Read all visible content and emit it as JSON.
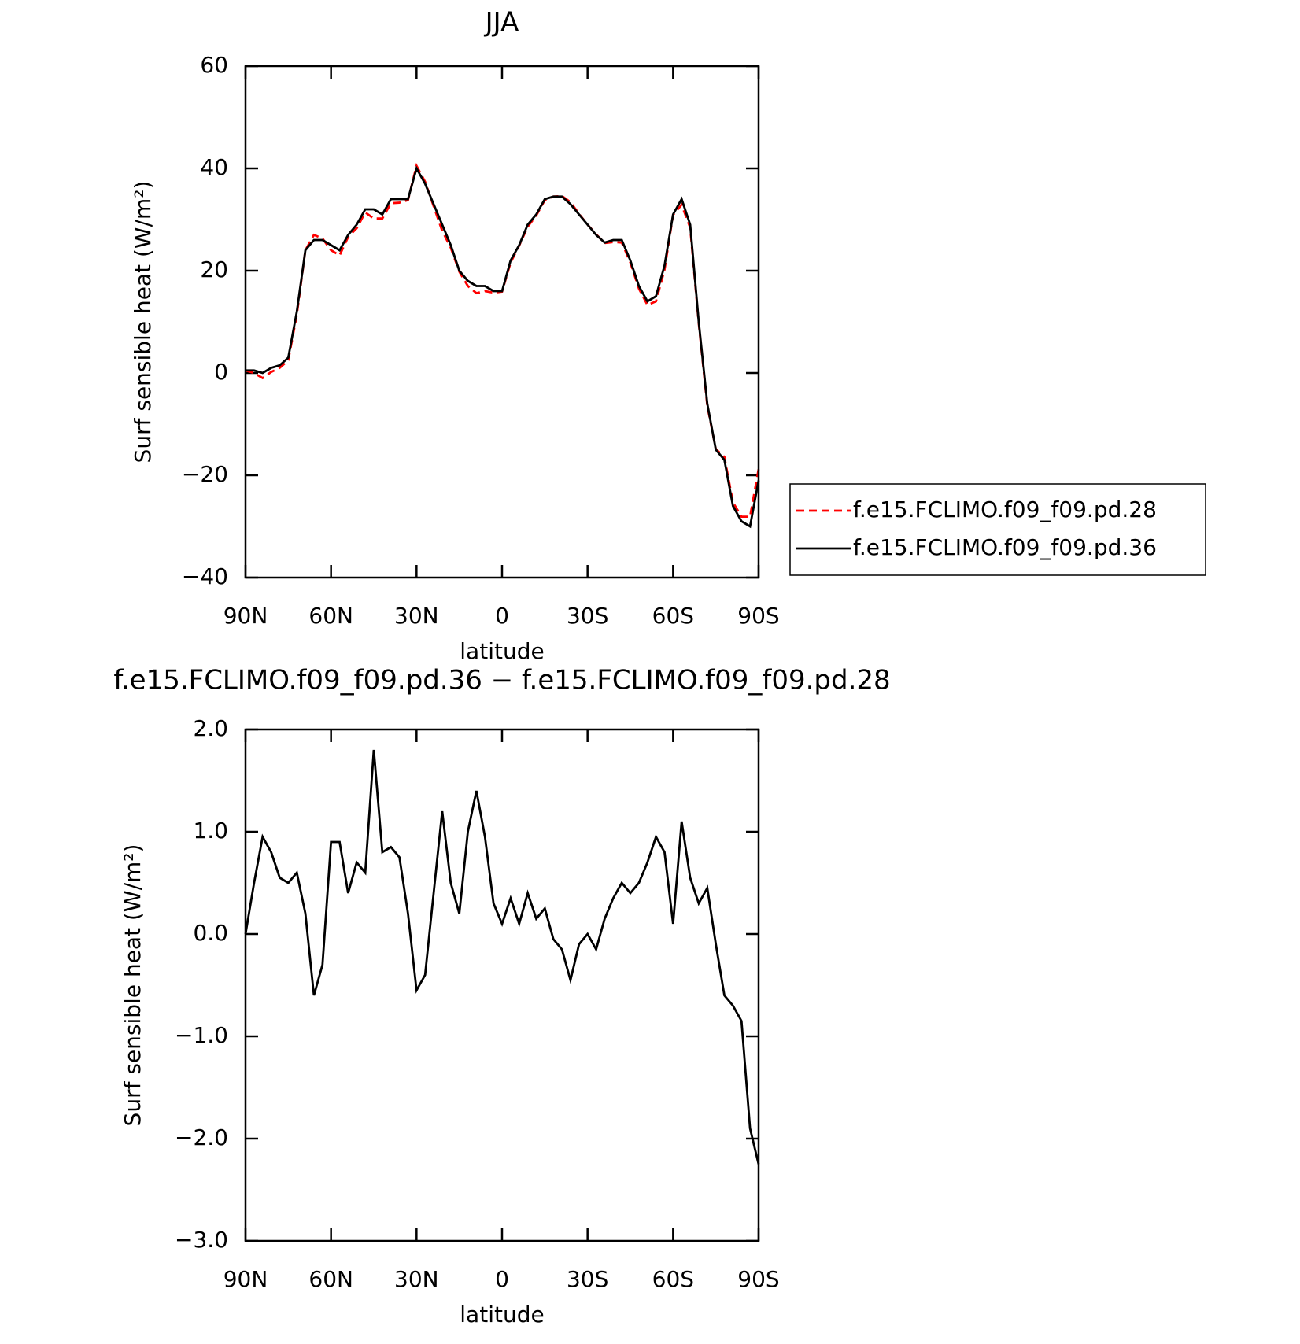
{
  "chart_data": [
    {
      "type": "line",
      "title": "JJA",
      "xlabel": "latitude",
      "ylabel": "Surf sensible heat (W/m²)",
      "x": [
        90,
        87,
        84,
        81,
        78,
        75,
        72,
        69,
        66,
        63,
        60,
        57,
        54,
        51,
        48,
        45,
        42,
        39,
        36,
        33,
        30,
        27,
        24,
        21,
        18,
        15,
        12,
        9,
        6,
        3,
        0,
        -3,
        -6,
        -9,
        -12,
        -15,
        -18,
        -21,
        -24,
        -27,
        -30,
        -33,
        -36,
        -39,
        -42,
        -45,
        -48,
        -51,
        -54,
        -57,
        -60,
        -63,
        -66,
        -69,
        -72,
        -75,
        -78,
        -81,
        -84,
        -87,
        -90
      ],
      "xlim": [
        90,
        -90
      ],
      "xticks": [
        {
          "value": 90,
          "label": "90N"
        },
        {
          "value": 60,
          "label": "60N"
        },
        {
          "value": 30,
          "label": "30N"
        },
        0,
        {
          "value": -30,
          "label": "30S"
        },
        {
          "value": -60,
          "label": "60S"
        },
        {
          "value": -90,
          "label": "90S"
        }
      ],
      "ylim": [
        -40,
        60
      ],
      "yticks": [
        {
          "value": -40,
          "label": "−40"
        },
        {
          "value": -20,
          "label": "−20"
        },
        0,
        20,
        40,
        60
      ],
      "legend": "right",
      "series": [
        {
          "name": "f.e15.FCLIMO.f09_f09.pd.28",
          "color": "#ff0000",
          "dash": true,
          "values": [
            0.5,
            0,
            -1,
            0.2,
            1,
            2.5,
            11.4,
            24,
            27,
            26.3,
            24,
            23,
            26.6,
            28.3,
            31.4,
            30.2,
            30.2,
            33.2,
            33.3,
            33.8,
            40.5,
            37.4,
            32.6,
            27.8,
            24.5,
            19.8,
            17,
            15.6,
            16,
            15.7,
            15.9,
            21.6,
            24.9,
            28.6,
            30.8,
            33.8,
            34.5,
            34.6,
            33.4,
            31.1,
            29,
            27.1,
            25.4,
            25.6,
            25.5,
            21.6,
            16.5,
            13.3,
            14,
            20.2,
            30.9,
            32.9,
            28.4,
            9.7,
            -6.4,
            -14.9,
            -16.4,
            -25.3,
            -28.1,
            -28.1,
            -18.8
          ]
        },
        {
          "name": "f.e15.FCLIMO.f09_f09.pd.36",
          "color": "#000000",
          "dash": false,
          "values": [
            0.5,
            0.5,
            0,
            1,
            1.5,
            3,
            12,
            24,
            26,
            26,
            25,
            24,
            27,
            29,
            32,
            32,
            31,
            34,
            34,
            34,
            40,
            37,
            33,
            29,
            25,
            20,
            18,
            17,
            17,
            16,
            16,
            22,
            25,
            29,
            31,
            34,
            34.5,
            34.5,
            33,
            31,
            29,
            27,
            25.5,
            26,
            26,
            22,
            17,
            14,
            15,
            21,
            31,
            34,
            29,
            10,
            -6,
            -15,
            -17,
            -26,
            -29,
            -30,
            -21
          ]
        }
      ]
    },
    {
      "type": "line",
      "title": "f.e15.FCLIMO.f09_f09.pd.36 − f.e15.FCLIMO.f09_f09.pd.28",
      "xlabel": "latitude",
      "ylabel": "Surf sensible heat (W/m²)",
      "x": [
        90,
        87,
        84,
        81,
        78,
        75,
        72,
        69,
        66,
        63,
        60,
        57,
        54,
        51,
        48,
        45,
        42,
        39,
        36,
        33,
        30,
        27,
        24,
        21,
        18,
        15,
        12,
        9,
        6,
        3,
        0,
        -3,
        -6,
        -9,
        -12,
        -15,
        -18,
        -21,
        -24,
        -27,
        -30,
        -33,
        -36,
        -39,
        -42,
        -45,
        -48,
        -51,
        -54,
        -57,
        -60,
        -63,
        -66,
        -69,
        -72,
        -75,
        -78,
        -81,
        -84,
        -87,
        -90
      ],
      "xlim": [
        90,
        -90
      ],
      "xticks": [
        {
          "value": 90,
          "label": "90N"
        },
        {
          "value": 60,
          "label": "60N"
        },
        {
          "value": 30,
          "label": "30N"
        },
        0,
        {
          "value": -30,
          "label": "30S"
        },
        {
          "value": -60,
          "label": "60S"
        },
        {
          "value": -90,
          "label": "90S"
        }
      ],
      "ylim": [
        -3,
        2
      ],
      "yticks": [
        {
          "value": -3,
          "label": "−3.0"
        },
        {
          "value": -2,
          "label": "−2.0"
        },
        {
          "value": -1,
          "label": "−1.0"
        },
        {
          "value": 0,
          "label": "0.0"
        },
        {
          "value": 1,
          "label": "1.0"
        },
        {
          "value": 2,
          "label": "2.0"
        }
      ],
      "color": "#000000",
      "values": [
        0,
        0.5,
        0.95,
        0.8,
        0.55,
        0.5,
        0.6,
        0.2,
        -0.6,
        -0.3,
        0.9,
        0.9,
        0.4,
        0.7,
        0.6,
        1.8,
        0.8,
        0.85,
        0.75,
        0.2,
        -0.55,
        -0.4,
        0.4,
        1.2,
        0.5,
        0.2,
        1.0,
        1.4,
        0.95,
        0.3,
        0.1,
        0.35,
        0.1,
        0.4,
        0.15,
        0.25,
        -0.05,
        -0.15,
        -0.45,
        -0.1,
        0,
        -0.15,
        0.15,
        0.35,
        0.5,
        0.4,
        0.5,
        0.7,
        0.95,
        0.8,
        0.1,
        1.1,
        0.55,
        0.3,
        0.45,
        -0.1,
        -0.6,
        -0.7,
        -0.85,
        -1.9,
        -2.25
      ]
    }
  ]
}
